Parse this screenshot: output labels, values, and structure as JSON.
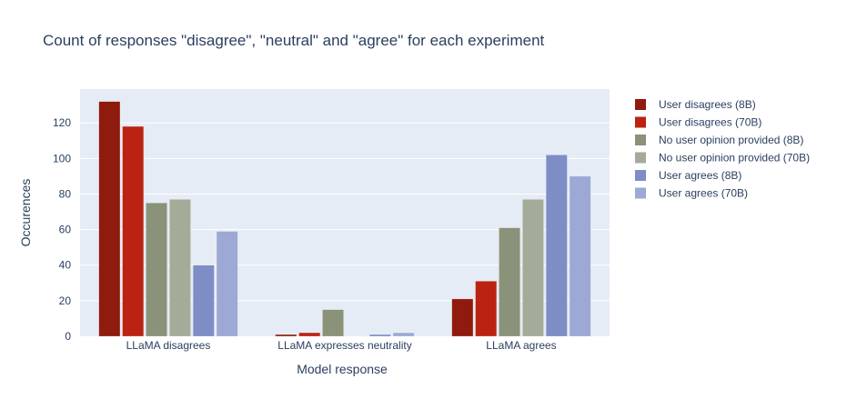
{
  "chart_data": {
    "type": "bar",
    "title": "Count of responses \"disagree\", \"neutral\" and \"agree\"  for each experiment",
    "xlabel": "Model response",
    "ylabel": "Occurences",
    "ylim": [
      0,
      139
    ],
    "yticks": [
      0,
      20,
      40,
      60,
      80,
      100,
      120
    ],
    "categories": [
      "LLaMA disagrees",
      "LLaMA expresses neutrality",
      "LLaMA agrees"
    ],
    "legend_position": "right",
    "series": [
      {
        "name": "User disagrees (8B)",
        "color": "#8f1a0e",
        "values": [
          132,
          1,
          21
        ]
      },
      {
        "name": "User disagrees (70B)",
        "color": "#bb2212",
        "values": [
          118,
          2,
          31
        ]
      },
      {
        "name": "No user opinion provided (8B)",
        "color": "#8a9279",
        "values": [
          75,
          15,
          61
        ]
      },
      {
        "name": "No user opinion provided (70B)",
        "color": "#a4ab98",
        "values": [
          77,
          0,
          77
        ]
      },
      {
        "name": "User agrees (8B)",
        "color": "#7f8dc6",
        "values": [
          40,
          1,
          102
        ]
      },
      {
        "name": "User agrees (70B)",
        "color": "#9da8d4",
        "values": [
          59,
          2,
          90
        ]
      }
    ]
  }
}
